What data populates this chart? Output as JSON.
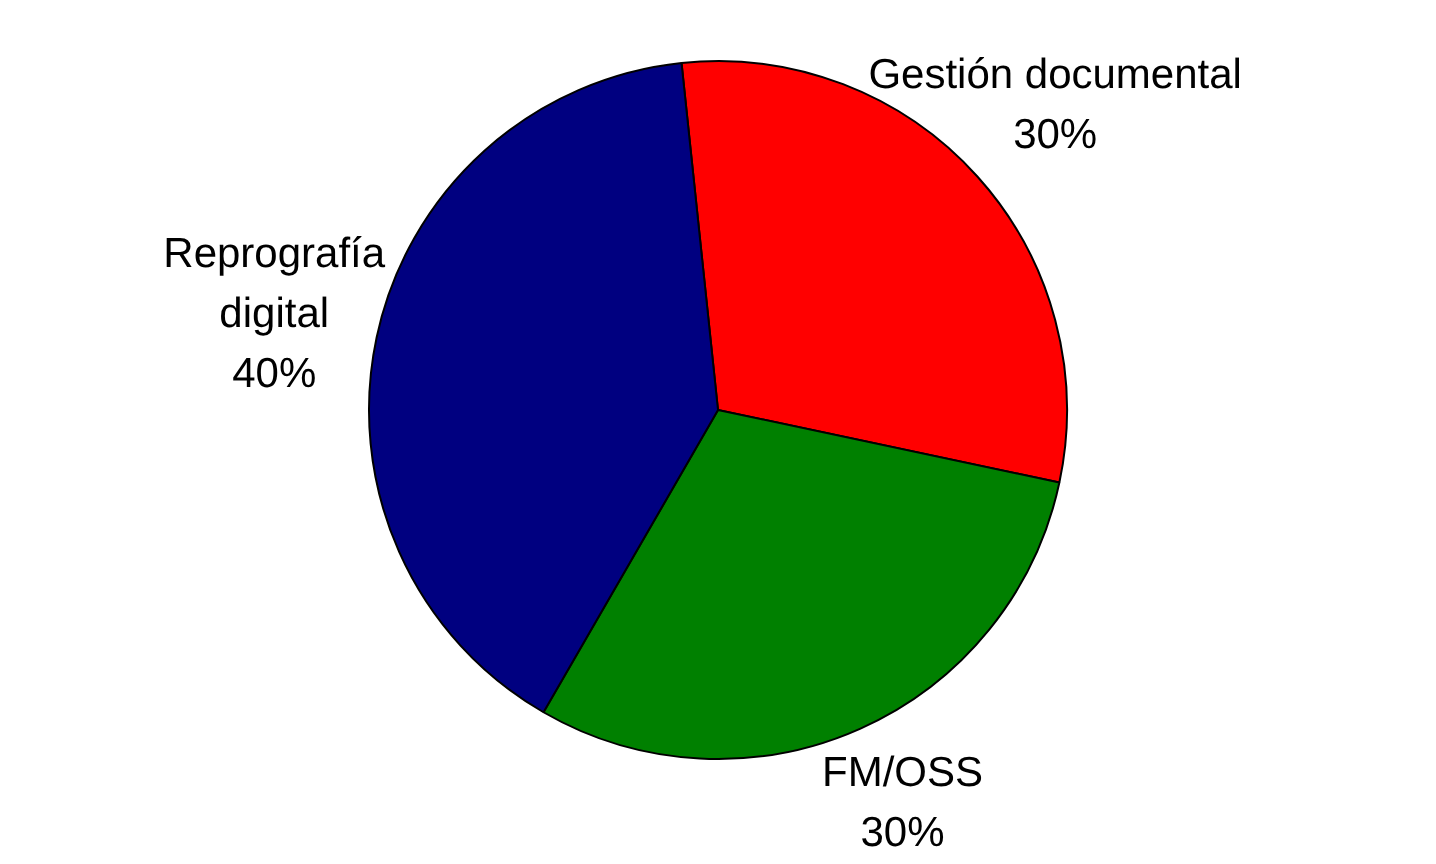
{
  "chart_data": {
    "type": "pie",
    "categories": [
      "Gestión documental",
      "FM/OSS",
      "Reprografía digital"
    ],
    "values": [
      30,
      30,
      40
    ],
    "colors": [
      "#ff0000",
      "#008000",
      "#000080"
    ],
    "value_labels": [
      "30%",
      "30%",
      "40%"
    ]
  }
}
